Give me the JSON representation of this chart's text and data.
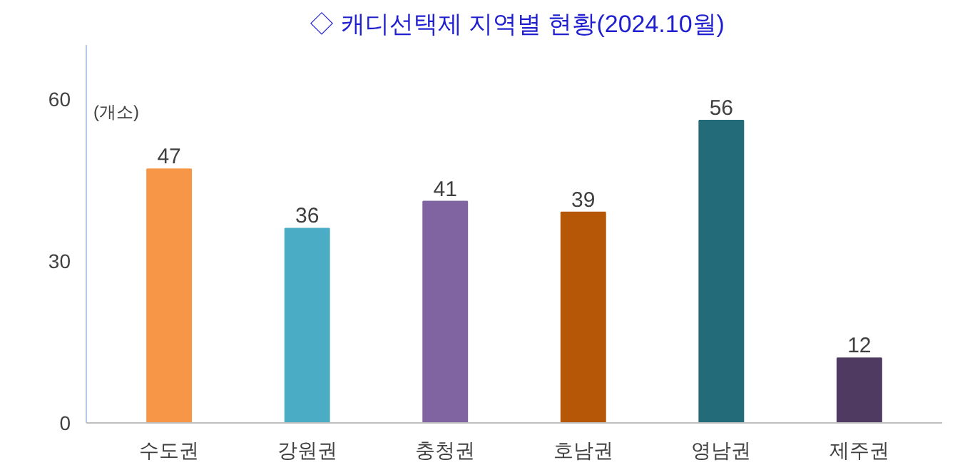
{
  "chart_data": {
    "type": "bar",
    "title": "◇ 캐디선택제 지역별 현황(2024.10월)",
    "ylabel": "(개소)",
    "categories": [
      "수도권",
      "강원권",
      "충청권",
      "호남권",
      "영남권",
      "제주권"
    ],
    "values": [
      47,
      36,
      41,
      39,
      56,
      12
    ],
    "colors": [
      "#f79646",
      "#4bacc6",
      "#8064a2",
      "#b65708",
      "#246b7a",
      "#4f3b62"
    ],
    "ylim": [
      0,
      70
    ],
    "yticks": [
      0,
      30,
      60
    ],
    "grid": false,
    "data_labels": true
  }
}
